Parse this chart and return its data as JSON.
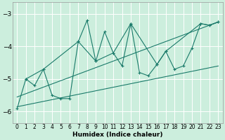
{
  "title": "",
  "xlabel": "Humidex (Indice chaleur)",
  "bg_color": "#cceedd",
  "grid_color": "#ffffff",
  "line_color": "#1a7a6a",
  "xlim": [
    -0.5,
    23.5
  ],
  "ylim": [
    -6.35,
    -2.65
  ],
  "yticks": [
    -6,
    -5,
    -4,
    -3
  ],
  "xticks": [
    0,
    1,
    2,
    3,
    4,
    5,
    6,
    7,
    8,
    9,
    10,
    11,
    12,
    13,
    14,
    15,
    16,
    17,
    18,
    19,
    20,
    21,
    22,
    23
  ],
  "series1_x": [
    0,
    1,
    2,
    3,
    4,
    5,
    6,
    7,
    8,
    9,
    10,
    11,
    12,
    13,
    14,
    15,
    16,
    17,
    18,
    19,
    20,
    21,
    22,
    23
  ],
  "series1_y": [
    -5.9,
    -5.0,
    -5.2,
    -4.7,
    -5.5,
    -5.6,
    -5.6,
    -3.85,
    -3.2,
    -4.45,
    -3.55,
    -4.2,
    -4.6,
    -3.3,
    -4.8,
    -4.9,
    -4.55,
    -4.15,
    -4.7,
    -4.6,
    -4.05,
    -3.3,
    -3.35,
    -3.25
  ],
  "series2_x": [
    1,
    3,
    7,
    9,
    11,
    13,
    16,
    17,
    21,
    22,
    23
  ],
  "series2_y": [
    -5.0,
    -4.7,
    -3.85,
    -4.45,
    -4.2,
    -3.3,
    -4.55,
    -4.15,
    -3.3,
    -3.35,
    -3.25
  ],
  "trend1_x": [
    0,
    23
  ],
  "trend1_y": [
    -5.55,
    -3.25
  ],
  "trend2_x": [
    0,
    23
  ],
  "trend2_y": [
    -5.85,
    -4.6
  ]
}
